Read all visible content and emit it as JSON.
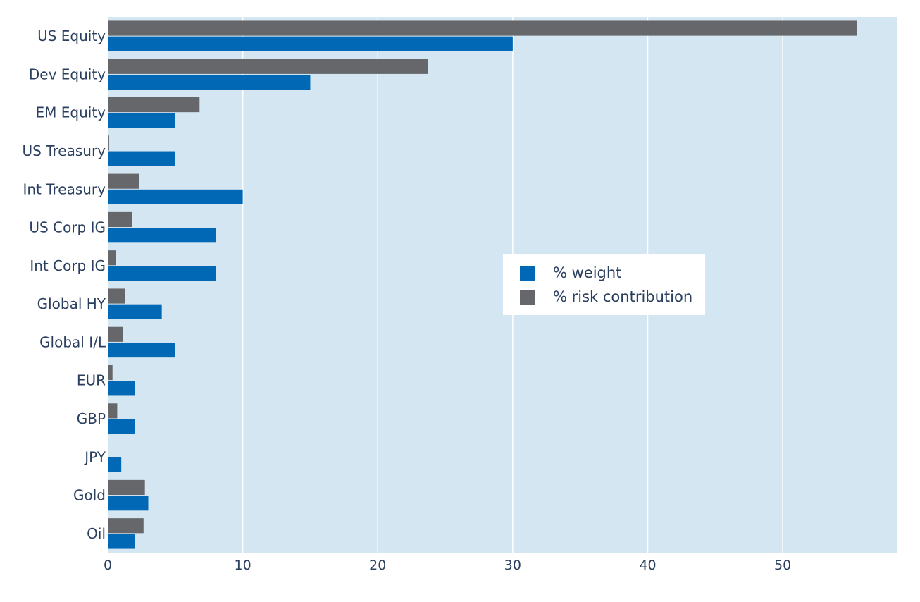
{
  "colors": {
    "weight": "#0068b5",
    "risk": "#66676b",
    "plot_bg": "#d5e6f3",
    "grid": "#ffffff",
    "text": "#2a3f5f"
  },
  "legend": {
    "placement": "center-right",
    "items": [
      {
        "label": "% weight",
        "color": "#0068b5"
      },
      {
        "label": "% risk contribution",
        "color": "#66676b"
      }
    ]
  },
  "chart_data": {
    "type": "bar",
    "orientation": "horizontal",
    "categories": [
      "US Equity",
      "Dev Equity",
      "EM Equity",
      "US Treasury",
      "Int Treasury",
      "US Corp IG",
      "Int Corp IG",
      "Global HY",
      "Global I/L",
      "EUR",
      "GBP",
      "JPY",
      "Gold",
      "Oil"
    ],
    "series": [
      {
        "name": "% weight",
        "values": [
          30,
          15,
          5,
          5,
          10,
          8,
          8,
          4,
          5,
          2,
          2,
          1,
          3,
          2
        ]
      },
      {
        "name": "% risk contribution",
        "values": [
          55.5,
          23.7,
          6.8,
          0.1,
          2.3,
          1.8,
          0.6,
          1.3,
          1.1,
          0.35,
          0.7,
          0.0,
          2.75,
          2.65
        ]
      }
    ],
    "xlim": [
      0,
      58.5
    ],
    "xticks": [
      0,
      10,
      20,
      30,
      40,
      50
    ],
    "grid": true
  }
}
